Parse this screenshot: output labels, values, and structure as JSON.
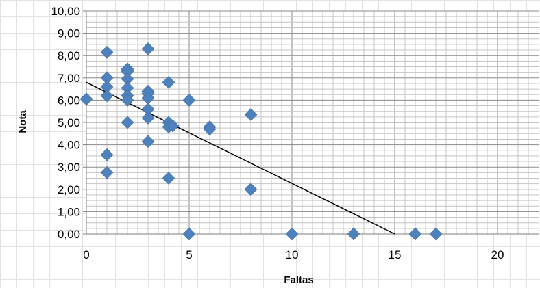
{
  "chart_data": {
    "type": "scatter",
    "xlabel": "Faltas",
    "ylabel": "Nota",
    "xlim": [
      0,
      22
    ],
    "ylim": [
      0,
      10
    ],
    "x_ticks": [
      "0",
      "5",
      "10",
      "15",
      "20"
    ],
    "y_ticks": [
      "0,00",
      "1,00",
      "2,00",
      "3,00",
      "4,00",
      "5,00",
      "6,00",
      "7,00",
      "8,00",
      "9,00",
      "10,00"
    ],
    "grid": true,
    "marker": "diamond",
    "marker_color": "#4f81bd",
    "trendline": {
      "x": [
        0,
        15
      ],
      "y": [
        6.8,
        0
      ],
      "color": "#000000"
    },
    "series": [
      {
        "points": [
          [
            0,
            6.05
          ],
          [
            1,
            8.15
          ],
          [
            1,
            7.0
          ],
          [
            1,
            6.6
          ],
          [
            1,
            6.2
          ],
          [
            1,
            3.55
          ],
          [
            1,
            2.75
          ],
          [
            2,
            7.4
          ],
          [
            2,
            7.3
          ],
          [
            2,
            6.95
          ],
          [
            2,
            6.55
          ],
          [
            2,
            6.2
          ],
          [
            2,
            6.0
          ],
          [
            2,
            5.0
          ],
          [
            3,
            8.3
          ],
          [
            3,
            6.4
          ],
          [
            3,
            6.3
          ],
          [
            3,
            6.1
          ],
          [
            3,
            5.6
          ],
          [
            3,
            5.2
          ],
          [
            3,
            4.15
          ],
          [
            4,
            6.8
          ],
          [
            4,
            5.0
          ],
          [
            4,
            4.8
          ],
          [
            4,
            2.5
          ],
          [
            4.2,
            4.85
          ],
          [
            5,
            6.0
          ],
          [
            5,
            0
          ],
          [
            6,
            4.8
          ],
          [
            6,
            4.7
          ],
          [
            8,
            5.35
          ],
          [
            8,
            2.0
          ],
          [
            10,
            0
          ],
          [
            13,
            0
          ],
          [
            16,
            0
          ],
          [
            17,
            0
          ]
        ]
      }
    ]
  }
}
